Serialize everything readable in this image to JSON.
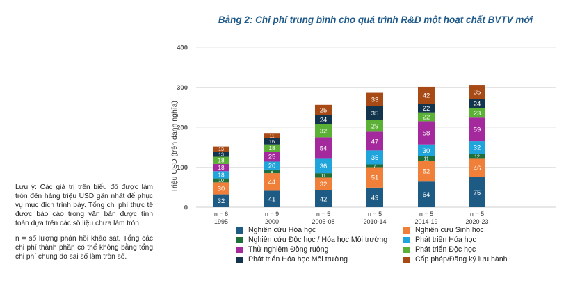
{
  "title": "Bảng 2: Chi phí trung bình cho quá trình R&D một hoạt chất BVTV mới",
  "notes": {
    "p1": "Lưu ý: Các giá trị trên biểu đồ được làm tròn đến hàng triệu USD gần nhất để phục vụ mục đích trình bày. Tổng chi phí thực tế được báo cáo trong văn bản được tính toán dựa trên các số liệu chưa làm tròn.",
    "p2": "n = số lượng phản hồi khảo sát. Tổng các chi phí thành phần có thể không bằng tổng chi phí chung do sai số làm tròn số."
  },
  "chart_data": {
    "type": "bar",
    "stacked": true,
    "categories": [
      "1995",
      "2000",
      "2005-08",
      "2010-14",
      "2014-19",
      "2020-23"
    ],
    "n_labels": [
      "n = 6",
      "n = 9",
      "n = 5",
      "n = 5",
      "n = 5",
      "n = 5"
    ],
    "ylabel": "Triệu USD (trên danh nghĩa)",
    "ylim": [
      0,
      400
    ],
    "yticks": [
      0,
      100,
      200,
      300,
      400
    ],
    "grid": true,
    "legend_position": "bottom",
    "series": [
      {
        "name": "Nghiên cứu Hóa học",
        "color": "#1e5b84",
        "values": [
          32,
          41,
          42,
          49,
          64,
          75
        ]
      },
      {
        "name": "Nghiên cứu Sinh học",
        "color": "#ef7f39",
        "values": [
          30,
          44,
          32,
          51,
          52,
          46
        ]
      },
      {
        "name": "Nghiên cứu Độc học / Hóa học Môi trường",
        "color": "#1f6f3b",
        "values": [
          10,
          9,
          11,
          7,
          11,
          12
        ]
      },
      {
        "name": "Phát triển Hóa học",
        "color": "#1fa4dc",
        "values": [
          18,
          20,
          36,
          35,
          30,
          32
        ]
      },
      {
        "name": "Thử nghiệm Đồng ruộng",
        "color": "#a3299c",
        "values": [
          18,
          25,
          54,
          47,
          58,
          59
        ]
      },
      {
        "name": "Phát triển Độc học",
        "color": "#5bb135",
        "values": [
          18,
          18,
          32,
          29,
          22,
          23
        ]
      },
      {
        "name": "Phát triển Hóa học Môi trường",
        "color": "#12354d",
        "values": [
          13,
          16,
          24,
          35,
          22,
          24
        ]
      },
      {
        "name": "Cấp phép/Đăng ký lưu hành",
        "color": "#a84a16",
        "values": [
          13,
          11,
          25,
          33,
          42,
          35
        ]
      }
    ]
  }
}
